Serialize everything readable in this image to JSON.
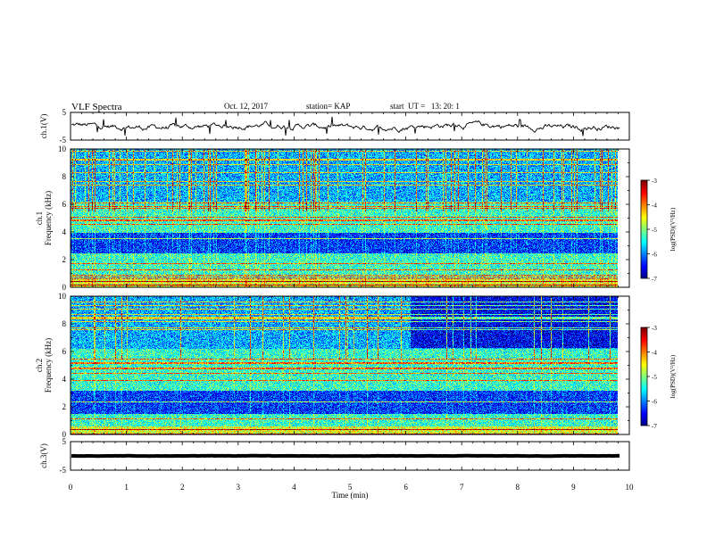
{
  "header": {
    "title": "VLF Spectra",
    "date": "Oct. 12, 2017",
    "station": "station= KAP",
    "start": "start  UT =   13: 20: 1"
  },
  "chart_data": [
    {
      "type": "line",
      "ylabel": "ch.1(V)",
      "ylim": [
        -5,
        5
      ],
      "y_ticks": [
        "5",
        "-5"
      ],
      "xlim": [
        0,
        10
      ],
      "x_end": 9.83,
      "baseline": 0,
      "noise_amplitude": 1.2
    },
    {
      "type": "heatmap",
      "ylabel": "ch.1\nFrequency (kHz)",
      "ylim": [
        0,
        10
      ],
      "y_ticks": [
        "0",
        "2",
        "4",
        "6",
        "8",
        "10"
      ],
      "xlim": [
        0,
        10
      ],
      "x_end": 9.83,
      "colorbar": {
        "label": "log(PSD)(V²/Hz)",
        "range": [
          -7,
          -3
        ],
        "ticks": [
          "-3",
          "-4",
          "-5",
          "-6",
          "-7"
        ]
      },
      "low_band_khz": [
        2.5,
        4.0
      ],
      "spike_density": "high"
    },
    {
      "type": "heatmap",
      "ylabel": "ch.2\nFrequency (kHz)",
      "ylim": [
        0,
        10
      ],
      "y_ticks": [
        "0",
        "2",
        "4",
        "6",
        "8",
        "10"
      ],
      "xlim": [
        0,
        10
      ],
      "x_end": 9.83,
      "colorbar": {
        "label": "log(PSD)(V²/Hz)",
        "range": [
          -7,
          -3
        ],
        "ticks": [
          "-3",
          "-4",
          "-5",
          "-6",
          "-7"
        ]
      },
      "low_band_khz": [
        1.5,
        3.2
      ],
      "high_band_start_min": 6.1,
      "spike_density": "medium"
    },
    {
      "type": "line",
      "ylabel": "ch.3(V)",
      "ylim": [
        -5,
        5
      ],
      "y_ticks": [
        "5",
        "-5"
      ],
      "xlim": [
        0,
        10
      ],
      "x_end": 9.83,
      "baseline": 0,
      "noise_amplitude": 0.05
    }
  ],
  "x_axis": {
    "label": "Time (min)",
    "ticks": [
      "0",
      "1",
      "2",
      "3",
      "4",
      "5",
      "6",
      "7",
      "8",
      "9",
      "10"
    ]
  }
}
